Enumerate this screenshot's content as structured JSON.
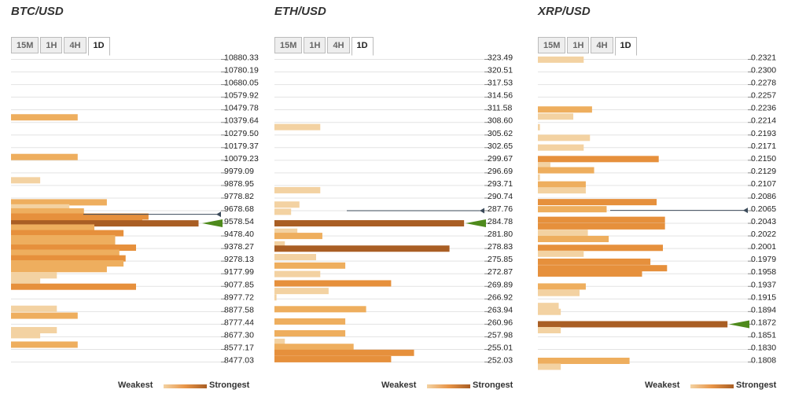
{
  "legend": {
    "weakest": "Weakest",
    "strongest": "Strongest"
  },
  "timeframes": [
    "15M",
    "1H",
    "4H",
    "1D"
  ],
  "active_timeframe": "1D",
  "colors": {
    "weak": "#f3d2a2",
    "mid": "#e89548",
    "strong": "#a95e24",
    "current_price_arrow": "#4e8a1c",
    "grid": "#d8d8d8"
  },
  "chart_data": [
    {
      "type": "bar",
      "title": "BTC/USD",
      "ticks": [
        "10880.33",
        "10780.19",
        "10680.05",
        "10579.92",
        "10479.78",
        "10379.64",
        "10279.50",
        "10179.37",
        "10079.23",
        "9979.09",
        "9878.95",
        "9778.82",
        "9678.68",
        "9578.54",
        "9478.40",
        "9378.27",
        "9278.13",
        "9177.99",
        "9077.85",
        "8977.72",
        "8877.58",
        "8777.44",
        "8677.30",
        "8577.17",
        "8477.03"
      ],
      "price_levels": [
        10880.33,
        8477.03
      ],
      "current_price": 9650,
      "strongest_level": 9578.54,
      "bars": [
        {
          "p": 10420,
          "v": 0.32,
          "s": 2
        },
        {
          "p": 10105,
          "v": 0.32,
          "s": 2
        },
        {
          "p": 9920,
          "v": 0.14,
          "s": 1
        },
        {
          "p": 9745,
          "v": 0.46,
          "s": 2
        },
        {
          "p": 9705,
          "v": 0.28,
          "s": 1
        },
        {
          "p": 9673,
          "v": 0.35,
          "s": 2
        },
        {
          "p": 9632,
          "v": 0.66,
          "s": 3
        },
        {
          "p": 9600,
          "v": 0.63,
          "s": 3
        },
        {
          "p": 9578,
          "v": 0.9,
          "s": 4
        },
        {
          "p": 9545,
          "v": 0.4,
          "s": 2
        },
        {
          "p": 9500,
          "v": 0.54,
          "s": 3
        },
        {
          "p": 9460,
          "v": 0.5,
          "s": 2
        },
        {
          "p": 9420,
          "v": 0.5,
          "s": 2
        },
        {
          "p": 9385,
          "v": 0.6,
          "s": 3
        },
        {
          "p": 9345,
          "v": 0.52,
          "s": 2
        },
        {
          "p": 9300,
          "v": 0.55,
          "s": 3
        },
        {
          "p": 9260,
          "v": 0.54,
          "s": 2
        },
        {
          "p": 9215,
          "v": 0.46,
          "s": 2
        },
        {
          "p": 9165,
          "v": 0.22,
          "s": 1
        },
        {
          "p": 9125,
          "v": 0.14,
          "s": 1
        },
        {
          "p": 9075,
          "v": 0.6,
          "s": 3
        },
        {
          "p": 8900,
          "v": 0.22,
          "s": 1
        },
        {
          "p": 8845,
          "v": 0.32,
          "s": 2
        },
        {
          "p": 8730,
          "v": 0.22,
          "s": 1
        },
        {
          "p": 8690,
          "v": 0.14,
          "s": 1
        },
        {
          "p": 8615,
          "v": 0.32,
          "s": 2
        }
      ]
    },
    {
      "type": "bar",
      "title": "ETH/USD",
      "ticks": [
        "323.49",
        "320.51",
        "317.53",
        "314.56",
        "311.58",
        "308.60",
        "305.62",
        "302.65",
        "299.67",
        "296.69",
        "293.71",
        "290.74",
        "287.76",
        "284.78",
        "281.80",
        "278.83",
        "275.85",
        "272.87",
        "269.89",
        "266.92",
        "263.94",
        "260.96",
        "257.98",
        "255.01",
        "252.03"
      ],
      "price_levels": [
        323.49,
        252.03
      ],
      "current_price": 287.76,
      "strongest_level": 284.78,
      "bars": [
        {
          "p": 307.5,
          "v": 0.22,
          "s": 1
        },
        {
          "p": 292.6,
          "v": 0.22,
          "s": 1
        },
        {
          "p": 289.2,
          "v": 0.12,
          "s": 1
        },
        {
          "p": 287.5,
          "v": 0.08,
          "s": 1
        },
        {
          "p": 284.78,
          "v": 0.91,
          "s": 4
        },
        {
          "p": 282.8,
          "v": 0.11,
          "s": 1
        },
        {
          "p": 281.8,
          "v": 0.23,
          "s": 2
        },
        {
          "p": 279.8,
          "v": 0.05,
          "s": 1
        },
        {
          "p": 278.8,
          "v": 0.84,
          "s": 4
        },
        {
          "p": 276.8,
          "v": 0.2,
          "s": 1
        },
        {
          "p": 274.8,
          "v": 0.34,
          "s": 2
        },
        {
          "p": 272.8,
          "v": 0.22,
          "s": 1
        },
        {
          "p": 270.6,
          "v": 0.56,
          "s": 3
        },
        {
          "p": 268.8,
          "v": 0.26,
          "s": 1
        },
        {
          "p": 267.3,
          "v": 0.01,
          "s": 1
        },
        {
          "p": 264.5,
          "v": 0.44,
          "s": 2
        },
        {
          "p": 261.6,
          "v": 0.34,
          "s": 2
        },
        {
          "p": 258.8,
          "v": 0.34,
          "s": 2
        },
        {
          "p": 256.8,
          "v": 0.05,
          "s": 1
        },
        {
          "p": 255.6,
          "v": 0.38,
          "s": 2
        },
        {
          "p": 254.2,
          "v": 0.67,
          "s": 3
        },
        {
          "p": 252.7,
          "v": 0.56,
          "s": 3
        }
      ]
    },
    {
      "type": "bar",
      "title": "XRP/USD",
      "ticks": [
        "0.2321",
        "0.2300",
        "0.2278",
        "0.2257",
        "0.2236",
        "0.2214",
        "0.2193",
        "0.2171",
        "0.2150",
        "0.2129",
        "0.2107",
        "0.2086",
        "0.2065",
        "0.2043",
        "0.2022",
        "0.2001",
        "0.1979",
        "0.1958",
        "0.1937",
        "0.1915",
        "0.1894",
        "0.1872",
        "0.1851",
        "0.1830",
        "0.1808"
      ],
      "price_levels": [
        0.2321,
        0.1808
      ],
      "current_price": 0.2065,
      "strongest_level": 0.1872,
      "bars": [
        {
          "p": 0.23205,
          "v": 0.22,
          "s": 1
        },
        {
          "p": 0.2236,
          "v": 0.26,
          "s": 2
        },
        {
          "p": 0.2224,
          "v": 0.17,
          "s": 1
        },
        {
          "p": 0.2206,
          "v": 0.01,
          "s": 1
        },
        {
          "p": 0.2188,
          "v": 0.25,
          "s": 1
        },
        {
          "p": 0.21715,
          "v": 0.22,
          "s": 1
        },
        {
          "p": 0.2152,
          "v": 0.58,
          "s": 3
        },
        {
          "p": 0.21415,
          "v": 0.06,
          "s": 1
        },
        {
          "p": 0.2133,
          "v": 0.27,
          "s": 2
        },
        {
          "p": 0.2121,
          "v": 0.01,
          "s": 1
        },
        {
          "p": 0.2109,
          "v": 0.23,
          "s": 2
        },
        {
          "p": 0.2099,
          "v": 0.23,
          "s": 1
        },
        {
          "p": 0.2079,
          "v": 0.57,
          "s": 3
        },
        {
          "p": 0.2067,
          "v": 0.33,
          "s": 2
        },
        {
          "p": 0.2049,
          "v": 0.61,
          "s": 3
        },
        {
          "p": 0.2038,
          "v": 0.61,
          "s": 3
        },
        {
          "p": 0.2027,
          "v": 0.24,
          "s": 1
        },
        {
          "p": 0.20165,
          "v": 0.34,
          "s": 2
        },
        {
          "p": 0.20015,
          "v": 0.6,
          "s": 3
        },
        {
          "p": 0.19915,
          "v": 0.22,
          "s": 1
        },
        {
          "p": 0.1978,
          "v": 0.54,
          "s": 3
        },
        {
          "p": 0.1967,
          "v": 0.62,
          "s": 3
        },
        {
          "p": 0.1958,
          "v": 0.5,
          "s": 3
        },
        {
          "p": 0.1936,
          "v": 0.23,
          "s": 2
        },
        {
          "p": 0.1925,
          "v": 0.2,
          "s": 1
        },
        {
          "p": 0.1903,
          "v": 0.1,
          "s": 1
        },
        {
          "p": 0.1893,
          "v": 0.11,
          "s": 1
        },
        {
          "p": 0.1872,
          "v": 0.91,
          "s": 4
        },
        {
          "p": 0.1862,
          "v": 0.11,
          "s": 1
        },
        {
          "p": 0.181,
          "v": 0.44,
          "s": 2
        },
        {
          "p": 0.18,
          "v": 0.11,
          "s": 1
        }
      ]
    }
  ]
}
